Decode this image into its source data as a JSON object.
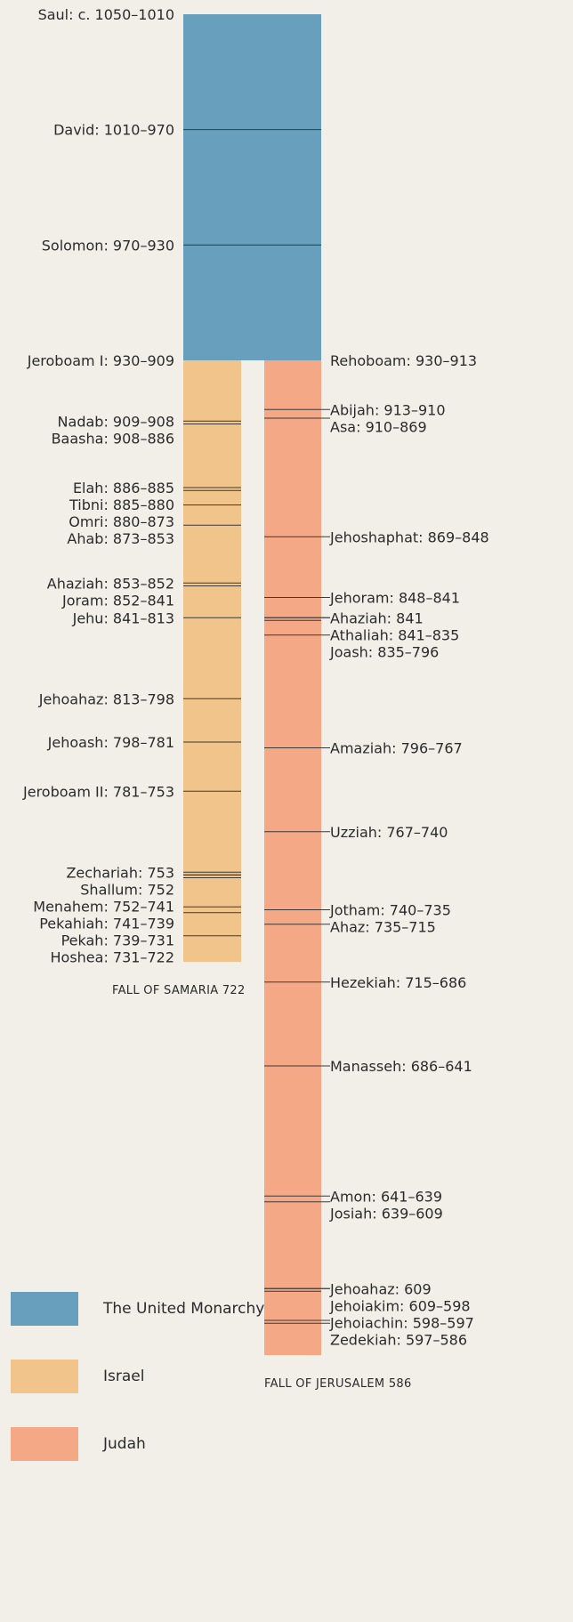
{
  "colors": {
    "united": "#679fbc",
    "israel": "#f0c48a",
    "judah": "#f4a886",
    "line": "#3a3a3a",
    "background": "#f2efe8"
  },
  "legend": [
    {
      "label": "The United Monarchy",
      "color": "#679fbc"
    },
    {
      "label": "Israel",
      "color": "#f0c48a"
    },
    {
      "label": "Judah",
      "color": "#f4a886"
    }
  ],
  "chart_data": {
    "type": "bar",
    "orientation": "vertical-timeline",
    "axis": "year BCE (descending downward)",
    "ylim": [
      1050,
      586
    ],
    "grid": false,
    "legend_position": "bottom-left",
    "series": [
      {
        "name": "The United Monarchy",
        "start": 1050,
        "end": 930,
        "reigns": [
          {
            "label": "Saul: c. 1050–1010",
            "start": 1050,
            "end": 1010
          },
          {
            "label": "David: 1010–970",
            "start": 1010,
            "end": 970
          },
          {
            "label": "Solomon: 970–930",
            "start": 970,
            "end": 930
          }
        ]
      },
      {
        "name": "Israel",
        "start": 930,
        "end": 722,
        "end_label": "FALL OF SAMARIA 722",
        "reigns": [
          {
            "label": "Jeroboam I: 930–909",
            "start": 930,
            "end": 909
          },
          {
            "label": "Nadab: 909–908",
            "start": 909,
            "end": 908
          },
          {
            "label": "Baasha: 908–886",
            "start": 908,
            "end": 886
          },
          {
            "label": "Elah: 886–885",
            "start": 886,
            "end": 885
          },
          {
            "label": "Tibni: 885–880",
            "start": 885,
            "end": 880
          },
          {
            "label": "Omri: 880–873",
            "start": 880,
            "end": 873
          },
          {
            "label": "Ahab: 873–853",
            "start": 873,
            "end": 853
          },
          {
            "label": "Ahaziah: 853–852",
            "start": 853,
            "end": 852
          },
          {
            "label": "Joram: 852–841",
            "start": 852,
            "end": 841
          },
          {
            "label": "Jehu: 841–813",
            "start": 841,
            "end": 813
          },
          {
            "label": "Jehoahaz: 813–798",
            "start": 813,
            "end": 798
          },
          {
            "label": "Jehoash: 798–781",
            "start": 798,
            "end": 781
          },
          {
            "label": "Jeroboam II: 781–753",
            "start": 781,
            "end": 753
          },
          {
            "label": "Zechariah: 753",
            "start": 753,
            "end": 753
          },
          {
            "label": "Shallum: 752",
            "start": 752,
            "end": 752
          },
          {
            "label": "Menahem: 752–741",
            "start": 752,
            "end": 741
          },
          {
            "label": "Pekahiah: 741–739",
            "start": 741,
            "end": 739
          },
          {
            "label": "Pekah: 739–731",
            "start": 739,
            "end": 731
          },
          {
            "label": "Hoshea: 731–722",
            "start": 731,
            "end": 722
          }
        ]
      },
      {
        "name": "Judah",
        "start": 930,
        "end": 586,
        "end_label": "FALL OF JERUSALEM 586",
        "reigns": [
          {
            "label": "Rehoboam: 930–913",
            "start": 930,
            "end": 913
          },
          {
            "label": "Abijah: 913–910",
            "start": 913,
            "end": 910
          },
          {
            "label": "Asa: 910–869",
            "start": 910,
            "end": 869
          },
          {
            "label": "Jehoshaphat: 869–848",
            "start": 869,
            "end": 848
          },
          {
            "label": "Jehoram: 848–841",
            "start": 848,
            "end": 841
          },
          {
            "label": "Ahaziah: 841",
            "start": 841,
            "end": 841
          },
          {
            "label": "Athaliah: 841–835",
            "start": 841,
            "end": 835
          },
          {
            "label": "Joash: 835–796",
            "start": 835,
            "end": 796
          },
          {
            "label": "Amaziah: 796–767",
            "start": 796,
            "end": 767
          },
          {
            "label": "Uzziah: 767–740",
            "start": 767,
            "end": 740
          },
          {
            "label": "Jotham: 740–735",
            "start": 740,
            "end": 735
          },
          {
            "label": "Ahaz: 735–715",
            "start": 735,
            "end": 715
          },
          {
            "label": "Hezekiah: 715–686",
            "start": 715,
            "end": 686
          },
          {
            "label": "Manasseh: 686–641",
            "start": 686,
            "end": 641
          },
          {
            "label": "Amon: 641–639",
            "start": 641,
            "end": 639
          },
          {
            "label": "Josiah: 639–609",
            "start": 639,
            "end": 609
          },
          {
            "label": "Jehoahaz: 609",
            "start": 609,
            "end": 609
          },
          {
            "label": "Jehoiakim: 609–598",
            "start": 609,
            "end": 598
          },
          {
            "label": "Jehoiachin: 598–597",
            "start": 598,
            "end": 597
          },
          {
            "label": "Zedekiah: 597–586",
            "start": 597,
            "end": 586
          }
        ]
      }
    ]
  }
}
